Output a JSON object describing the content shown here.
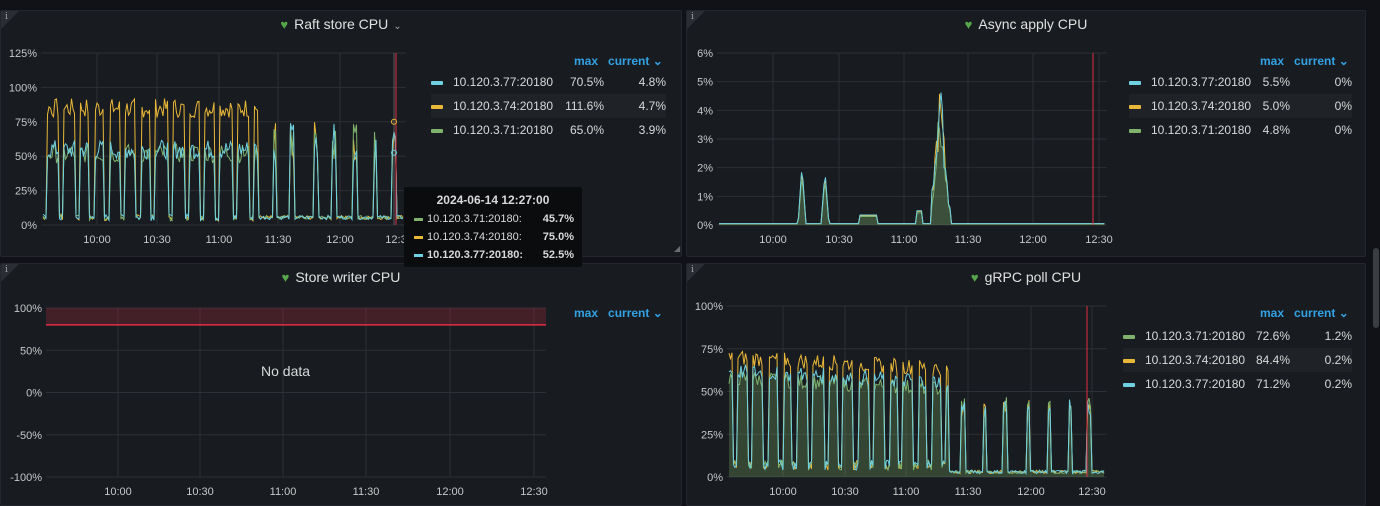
{
  "colors": {
    "green": "#7eb26d",
    "yellow": "#eab839",
    "cyan": "#6ed0e0",
    "accent": "#33a2e5",
    "threshold": "#e02f44"
  },
  "icons": {
    "info": "info-icon",
    "health": "heart-icon",
    "menu": "chevron-down-icon"
  },
  "panels": [
    {
      "title": "Raft store CPU",
      "has_chevron": true,
      "y_ticks": [
        "125%",
        "100%",
        "75%",
        "50%",
        "25%",
        "0%"
      ],
      "x_ticks": [
        "10:00",
        "10:30",
        "11:00",
        "11:30",
        "12:00",
        "12:3"
      ],
      "legend_max": "max",
      "legend_current": "current",
      "legend": [
        {
          "name": "10.120.3.77:20180",
          "max": "70.5%",
          "current": "4.8%",
          "color": "#6ed0e0"
        },
        {
          "name": "10.120.3.74:20180",
          "max": "111.6%",
          "current": "4.7%",
          "color": "#eab839"
        },
        {
          "name": "10.120.3.71:20180",
          "max": "65.0%",
          "current": "3.9%",
          "color": "#7eb26d"
        }
      ]
    },
    {
      "title": "Async apply CPU",
      "y_ticks": [
        "6%",
        "5%",
        "4%",
        "3%",
        "2%",
        "1%",
        "0%"
      ],
      "x_ticks": [
        "10:00",
        "10:30",
        "11:00",
        "11:30",
        "12:00",
        "12:30"
      ],
      "legend_max": "max",
      "legend_current": "current",
      "legend": [
        {
          "name": "10.120.3.77:20180",
          "max": "5.5%",
          "current": "0%",
          "color": "#6ed0e0"
        },
        {
          "name": "10.120.3.74:20180",
          "max": "5.0%",
          "current": "0%",
          "color": "#eab839"
        },
        {
          "name": "10.120.3.71:20180",
          "max": "4.8%",
          "current": "0%",
          "color": "#7eb26d"
        }
      ]
    },
    {
      "title": "Store writer CPU",
      "y_ticks": [
        "100%",
        "50%",
        "0%",
        "-50%",
        "-100%"
      ],
      "x_ticks": [
        "10:00",
        "10:30",
        "11:00",
        "11:30",
        "12:00",
        "12:30"
      ],
      "legend_max": "max",
      "legend_current": "current",
      "no_data": "No data"
    },
    {
      "title": "gRPC poll CPU",
      "y_ticks": [
        "100%",
        "75%",
        "50%",
        "25%",
        "0%"
      ],
      "x_ticks": [
        "10:00",
        "10:30",
        "11:00",
        "11:30",
        "12:00",
        "12:30"
      ],
      "legend_max": "max",
      "legend_current": "current",
      "legend": [
        {
          "name": "10.120.3.71:20180",
          "max": "72.6%",
          "current": "1.2%",
          "color": "#7eb26d"
        },
        {
          "name": "10.120.3.74:20180",
          "max": "84.4%",
          "current": "0.2%",
          "color": "#eab839"
        },
        {
          "name": "10.120.3.77:20180",
          "max": "71.2%",
          "current": "0.2%",
          "color": "#6ed0e0"
        }
      ]
    }
  ],
  "tooltip": {
    "time": "2024-06-14 12:27:00",
    "rows": [
      {
        "name": "10.120.3.71:20180:",
        "value": "45.7%",
        "color": "#7eb26d"
      },
      {
        "name": "10.120.3.74:20180:",
        "value": "75.0%",
        "color": "#eab839"
      },
      {
        "name": "10.120.3.77:20180:",
        "value": "52.5%",
        "color": "#6ed0e0"
      }
    ]
  }
}
